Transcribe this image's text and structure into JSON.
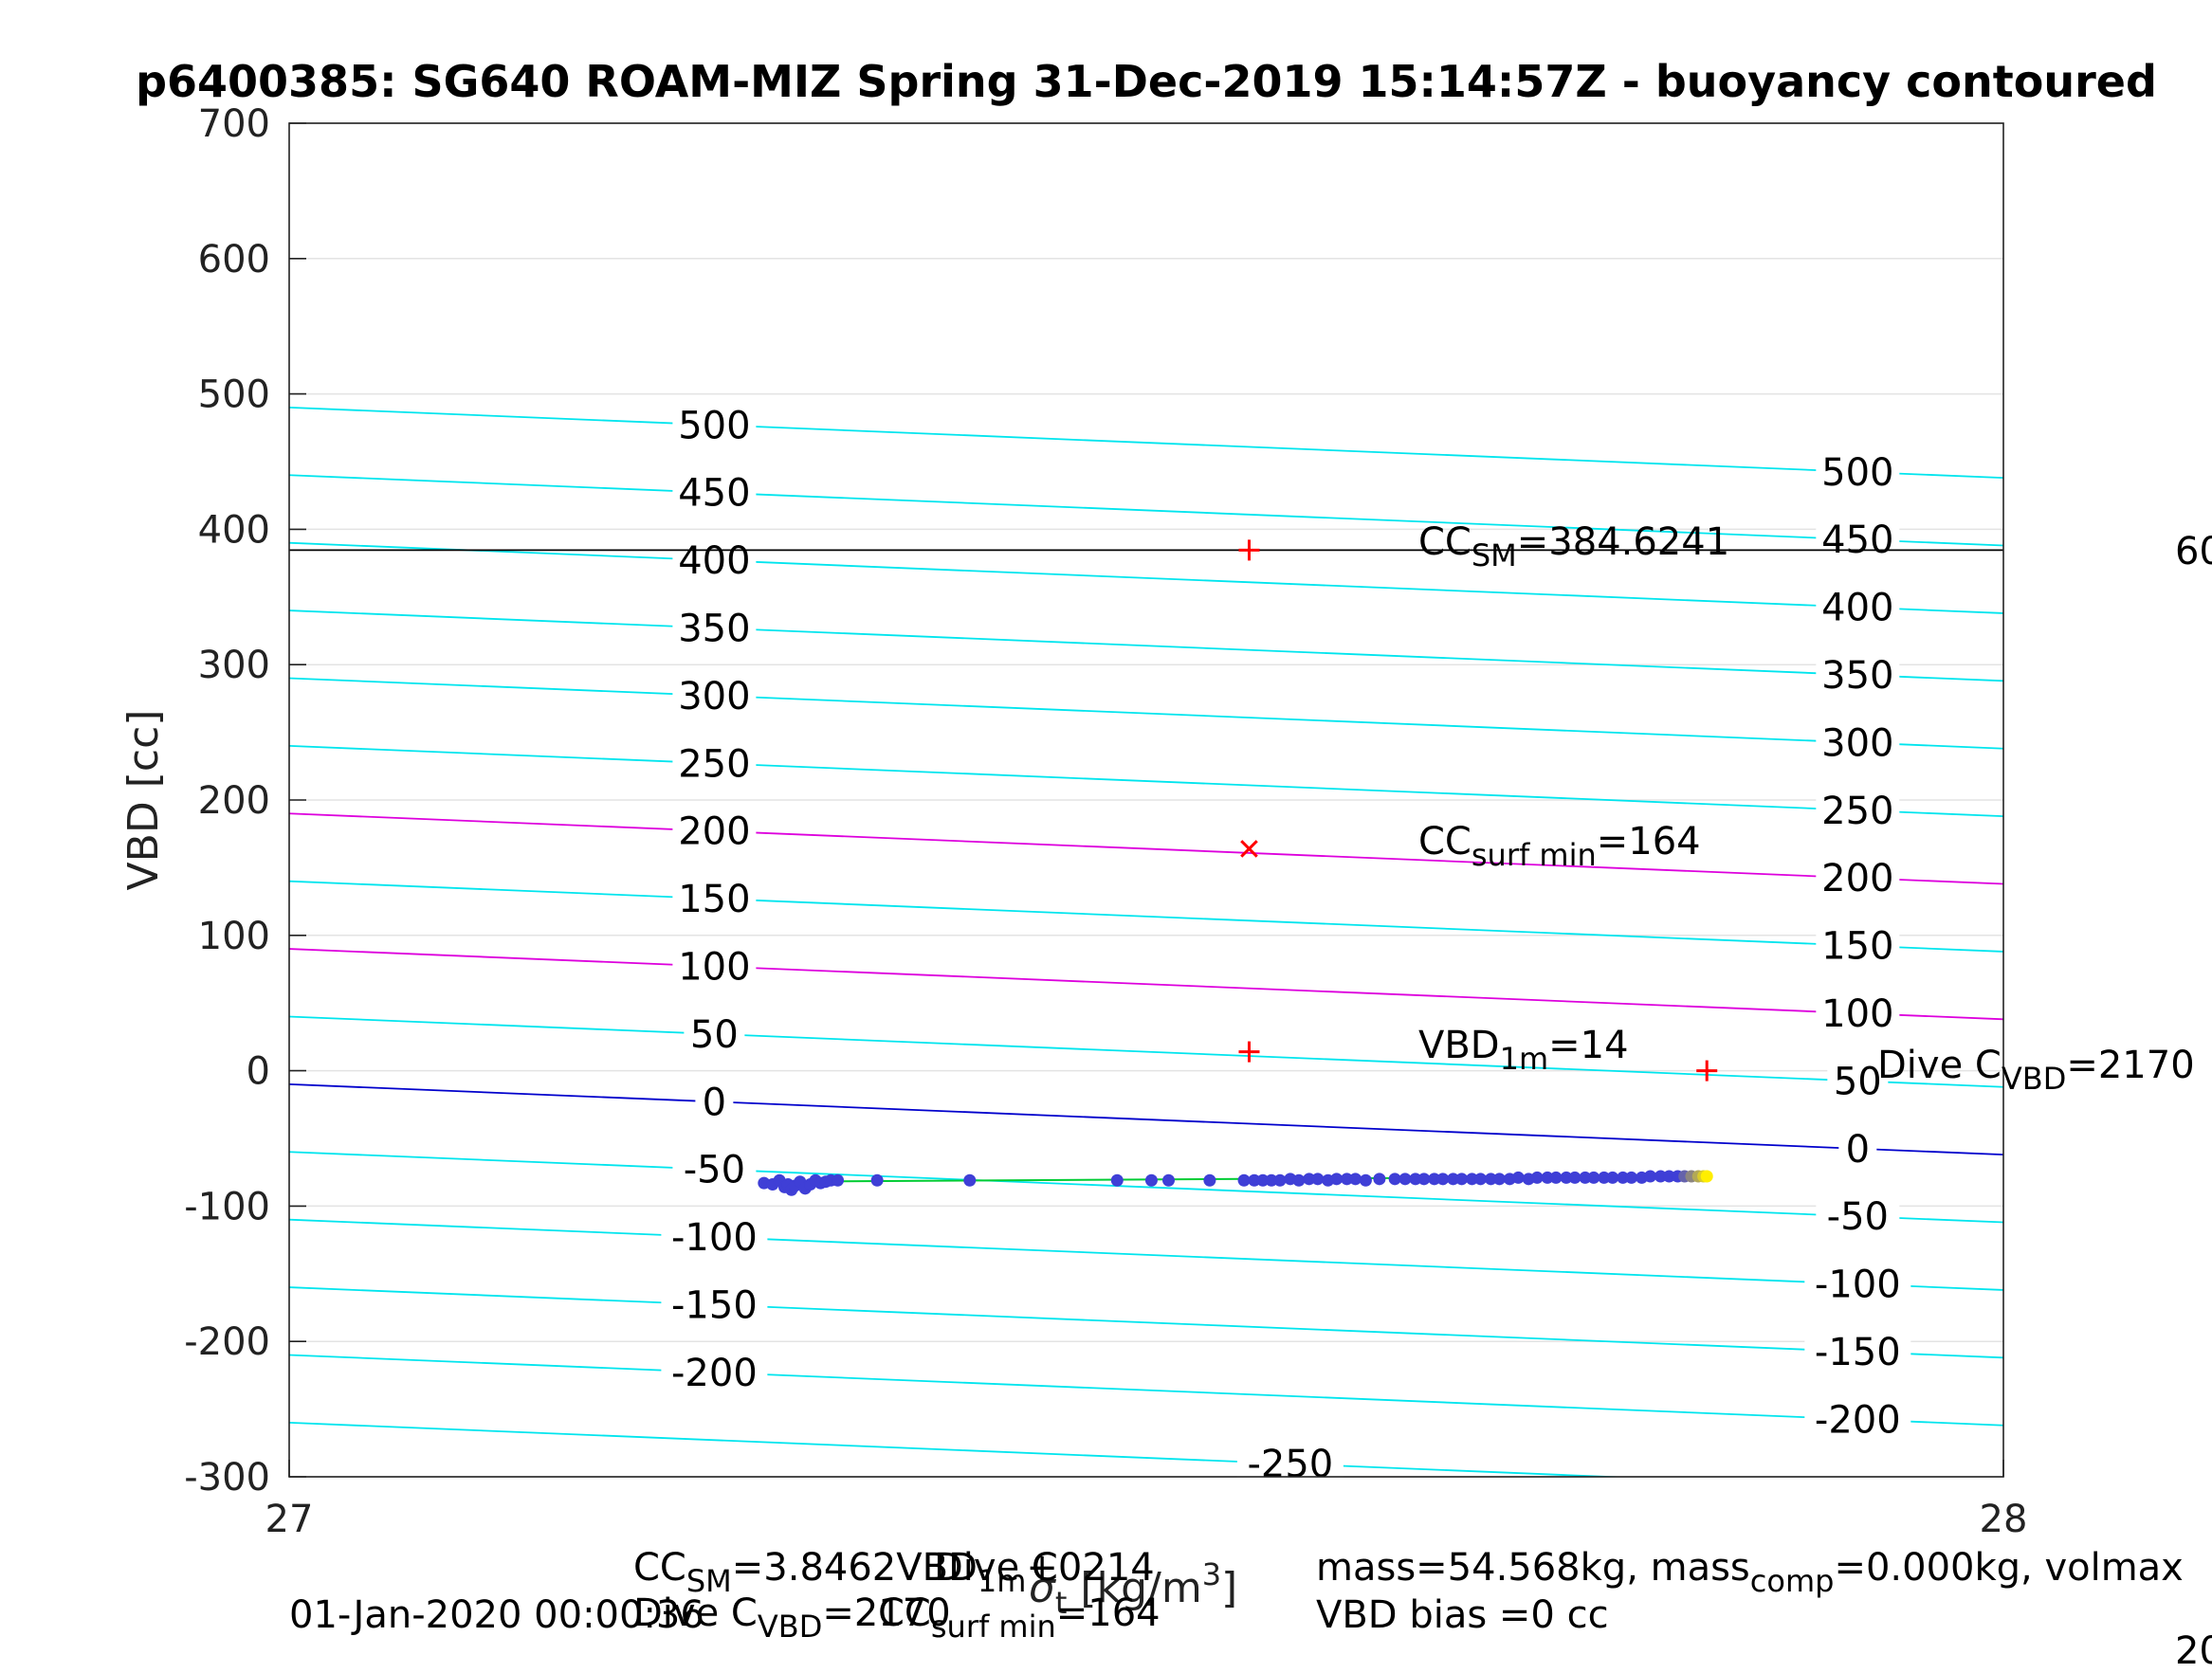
{
  "chart_data": {
    "type": "scatter",
    "title": "p6400385: SG640 ROAM-MIZ Spring 31-Dec-2019 15:14:57Z - buoyancy contoured",
    "ylabel": "VBD [cc]",
    "xlabel_main": "σ",
    "xlabel_sub": "t",
    "xlabel_unit_open": " [kg/m",
    "xlabel_unit_sup": "3",
    "xlabel_unit_close": "]",
    "xlim": [
      27,
      28
    ],
    "ylim": [
      -300,
      700
    ],
    "x_ticks": [
      27,
      28
    ],
    "y_ticks": [
      -300,
      -200,
      -100,
      0,
      100,
      200,
      300,
      400,
      500,
      600,
      700
    ],
    "grid": true,
    "contours": {
      "cc_at_left": [
        490,
        440,
        390,
        340,
        290,
        240,
        190,
        140,
        90,
        40,
        -10,
        -60,
        -110,
        -160,
        -210,
        -260
      ],
      "slope_per_sigma": -52,
      "levels": [
        500,
        450,
        400,
        350,
        300,
        250,
        200,
        150,
        100,
        50,
        0,
        -50,
        -100,
        -150,
        -200,
        -250
      ],
      "left_label_x": 27.248,
      "right_label_x": 27.915,
      "bottom_label_x": 27.584,
      "colors": {
        "default": "#00e5ee",
        "highlight": "#dd00dd",
        "zero": "#0000cc"
      },
      "highlight_levels": [
        200,
        100
      ],
      "zero_level": 0
    },
    "cc_sm_line": {
      "y": 384.6241,
      "color": "#000000"
    },
    "markers": [
      {
        "x": 27.56,
        "y": 384.6,
        "symbol": "+",
        "color": "#ff0000"
      },
      {
        "x": 27.56,
        "y": 164,
        "symbol": "x",
        "color": "#ff0000"
      },
      {
        "x": 27.56,
        "y": 14,
        "symbol": "+",
        "color": "#ff0000"
      },
      {
        "x": 27.827,
        "y": 0,
        "symbol": "+",
        "color": "#ff0000"
      }
    ],
    "fit_line": {
      "x": [
        27.277,
        27.827
      ],
      "y": [
        -82,
        -78
      ],
      "color": "#00cc33"
    },
    "series": [
      {
        "x": [
          27.277,
          27.282,
          27.286,
          27.289,
          27.291,
          27.293,
          27.295,
          27.298,
          27.301,
          27.304,
          27.307,
          27.31,
          27.313,
          27.316,
          27.32,
          27.343,
          27.397,
          27.483,
          27.503,
          27.513,
          27.537,
          27.557,
          27.563,
          27.568,
          27.573,
          27.578,
          27.584,
          27.589,
          27.595,
          27.6,
          27.606,
          27.611,
          27.617,
          27.622,
          27.628,
          27.636,
          27.645,
          27.651,
          27.657,
          27.662,
          27.668,
          27.673,
          27.679,
          27.684,
          27.69,
          27.695,
          27.701,
          27.706,
          27.712,
          27.717,
          27.723,
          27.728,
          27.734,
          27.739,
          27.745,
          27.75,
          27.756,
          27.761,
          27.767,
          27.772,
          27.778,
          27.783,
          27.789,
          27.794,
          27.8,
          27.805,
          27.81,
          27.814,
          27.818,
          27.822,
          27.825,
          27.827
        ],
        "y": [
          -83,
          -84,
          -81,
          -86,
          -84,
          -88,
          -85,
          -82,
          -87,
          -84,
          -81,
          -83,
          -82,
          -81,
          -81,
          -81,
          -81,
          -81,
          -81,
          -81,
          -81,
          -81,
          -81,
          -81,
          -81,
          -81,
          -80,
          -81,
          -80,
          -80,
          -81,
          -80,
          -80,
          -80,
          -81,
          -80,
          -80,
          -80,
          -80,
          -80,
          -80,
          -80,
          -80,
          -80,
          -80,
          -80,
          -80,
          -80,
          -80,
          -79,
          -80,
          -79,
          -79,
          -79,
          -79,
          -79,
          -79,
          -79,
          -79,
          -79,
          -79,
          -79,
          -79,
          -78,
          -78,
          -78,
          -78,
          -78,
          -78,
          -78,
          -78,
          -78
        ],
        "color_start": "#3f3fd6",
        "color_end": "#ffee00"
      }
    ],
    "annotations": {
      "cc_sm": {
        "main": "CC",
        "sub": "SM",
        "value": "=384.6241"
      },
      "cc_surf": {
        "main": "CC",
        "sub": "surf min",
        "value": "=164"
      },
      "vbd_1m": {
        "main": "VBD",
        "sub": "1m",
        "value": "=14"
      },
      "dive_c": {
        "main": "Dive C",
        "sub": "VBD",
        "value": "=2170"
      },
      "right_edge_value": "60",
      "right_edge_bottom": "20"
    },
    "footer": {
      "line1_left": {
        "main": "CC",
        "sub": "SM",
        "value": "=3.8462VBD",
        "sub2": "1m",
        "tail": "+0214"
      },
      "line1_overlap_text": "Dive C",
      "line2_left": {
        "main": "Dive C",
        "sub": "VBD",
        "value": "=2170"
      },
      "line2_overlap": {
        "main": "CC",
        "sub": "surf min",
        "value": "=164"
      },
      "timestamp": "01-Jan-2020 00:00:36",
      "mass_line": {
        "pre": "mass=54.568kg, mass",
        "sub": "comp",
        "post": "=0.000kg, volmax"
      },
      "bias_line": "VBD bias =0 cc"
    }
  }
}
